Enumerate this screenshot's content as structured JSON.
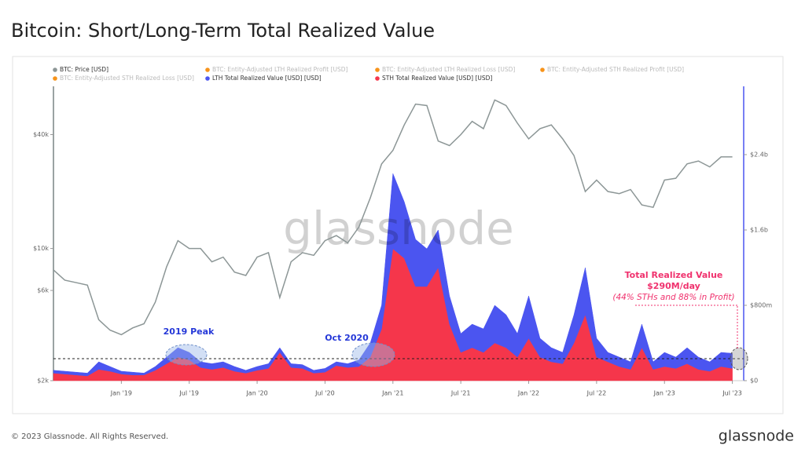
{
  "chart_data": {
    "type": "area",
    "title": "Bitcoin: Short/Long-Term Total Realized Value",
    "footer": "© 2023 Glassnode. All Rights Reserved.",
    "logo": "glassnode",
    "watermark": "glassnode",
    "x": [
      "2018-07",
      "2018-08",
      "2018-09",
      "2018-10",
      "2018-11",
      "2018-12",
      "2019-01",
      "2019-02",
      "2019-03",
      "2019-04",
      "2019-05",
      "2019-06",
      "2019-07",
      "2019-08",
      "2019-09",
      "2019-10",
      "2019-11",
      "2019-12",
      "2020-01",
      "2020-02",
      "2020-03",
      "2020-04",
      "2020-05",
      "2020-06",
      "2020-07",
      "2020-08",
      "2020-09",
      "2020-10",
      "2020-11",
      "2020-12",
      "2021-01",
      "2021-02",
      "2021-03",
      "2021-04",
      "2021-05",
      "2021-06",
      "2021-07",
      "2021-08",
      "2021-09",
      "2021-10",
      "2021-11",
      "2021-12",
      "2022-01",
      "2022-02",
      "2022-03",
      "2022-04",
      "2022-05",
      "2022-06",
      "2022-07",
      "2022-08",
      "2022-09",
      "2022-10",
      "2022-11",
      "2022-12",
      "2023-01",
      "2023-02",
      "2023-03",
      "2023-04",
      "2023-05",
      "2023-06",
      "2023-07"
    ],
    "xlim": [
      "2018-07",
      "2023-08"
    ],
    "xticks": [
      {
        "value": "2019-01",
        "label": "Jan '19"
      },
      {
        "value": "2019-07",
        "label": "Jul '19"
      },
      {
        "value": "2020-01",
        "label": "Jan '20"
      },
      {
        "value": "2020-07",
        "label": "Jul '20"
      },
      {
        "value": "2021-01",
        "label": "Jan '21"
      },
      {
        "value": "2021-07",
        "label": "Jul '21"
      },
      {
        "value": "2022-01",
        "label": "Jan '22"
      },
      {
        "value": "2022-07",
        "label": "Jul '22"
      },
      {
        "value": "2023-01",
        "label": "Jan '23"
      },
      {
        "value": "2023-07",
        "label": "Jul '23"
      }
    ],
    "ylim": [
      2000,
      72000
    ],
    "yscale": "log",
    "yticks": [
      {
        "value": 2000,
        "label": "$2k"
      },
      {
        "value": 6000,
        "label": "$6k"
      },
      {
        "value": 10000,
        "label": "$10k"
      },
      {
        "value": 40000,
        "label": "$40k"
      }
    ],
    "y2lim": [
      0,
      3125000000
    ],
    "y2ticks": [
      {
        "value": 0,
        "label": "$0"
      },
      {
        "value": 800000000,
        "label": "$800m"
      },
      {
        "value": 1600000000,
        "label": "$1.6b"
      },
      {
        "value": 2400000000,
        "label": "$2.4b"
      }
    ],
    "reference_line": 233000000,
    "series": [
      {
        "name": "BTC: Price [USD]",
        "color": "#8c9696",
        "kind": "line",
        "axis": "y",
        "values": [
          7700,
          6800,
          6600,
          6400,
          4200,
          3700,
          3500,
          3800,
          4000,
          5200,
          8000,
          11000,
          10000,
          10000,
          8500,
          9000,
          7500,
          7200,
          9000,
          9500,
          5500,
          8500,
          9500,
          9200,
          11000,
          11700,
          10700,
          13000,
          18500,
          28000,
          33000,
          45000,
          58000,
          57000,
          37000,
          35000,
          40000,
          47000,
          43000,
          61000,
          57000,
          46000,
          38000,
          43000,
          45000,
          38000,
          31000,
          20000,
          23000,
          20000,
          19500,
          20500,
          17000,
          16500,
          23000,
          23500,
          28000,
          29000,
          27000,
          30500,
          30500
        ]
      },
      {
        "name": "BTC: Entity-Adjusted LTH Realized Profit [USD]",
        "color": "#f7931a",
        "visible": false
      },
      {
        "name": "BTC: Entity-Adjusted LTH Realized Loss [USD]",
        "color": "#f7931a",
        "visible": false
      },
      {
        "name": "BTC: Entity-Adjusted STH Realized Profit [USD]",
        "color": "#f7931a",
        "visible": false
      },
      {
        "name": "BTC: Entity-Adjusted STH Realized Loss [USD]",
        "color": "#f7931a",
        "visible": false
      },
      {
        "name": "LTH Total Realized Value [USD] [USD]",
        "color": "#4b55f0",
        "kind": "area",
        "axis": "y2",
        "stack": 1,
        "values": [
          30000000,
          30000000,
          30000000,
          30000000,
          80000000,
          50000000,
          30000000,
          30000000,
          20000000,
          40000000,
          70000000,
          100000000,
          80000000,
          60000000,
          60000000,
          60000000,
          50000000,
          30000000,
          40000000,
          50000000,
          50000000,
          40000000,
          40000000,
          30000000,
          40000000,
          40000000,
          40000000,
          70000000,
          150000000,
          250000000,
          800000000,
          600000000,
          500000000,
          400000000,
          400000000,
          300000000,
          200000000,
          250000000,
          250000000,
          400000000,
          350000000,
          250000000,
          450000000,
          200000000,
          150000000,
          120000000,
          300000000,
          500000000,
          200000000,
          100000000,
          100000000,
          80000000,
          250000000,
          80000000,
          150000000,
          120000000,
          170000000,
          130000000,
          100000000,
          150000000,
          160000000
        ]
      },
      {
        "name": "STH Total Realized Value [USD] [USD]",
        "color": "#f5364b",
        "kind": "area",
        "axis": "y2",
        "stack": 0,
        "values": [
          80000000,
          70000000,
          60000000,
          50000000,
          120000000,
          100000000,
          70000000,
          60000000,
          60000000,
          110000000,
          180000000,
          250000000,
          220000000,
          140000000,
          120000000,
          140000000,
          100000000,
          80000000,
          110000000,
          130000000,
          300000000,
          140000000,
          130000000,
          80000000,
          90000000,
          160000000,
          140000000,
          150000000,
          250000000,
          550000000,
          1400000000,
          1300000000,
          1000000000,
          1000000000,
          1200000000,
          600000000,
          300000000,
          350000000,
          300000000,
          400000000,
          350000000,
          250000000,
          450000000,
          250000000,
          200000000,
          180000000,
          400000000,
          700000000,
          250000000,
          200000000,
          150000000,
          120000000,
          350000000,
          120000000,
          150000000,
          130000000,
          180000000,
          120000000,
          100000000,
          150000000,
          130000000
        ]
      }
    ],
    "annotations": {
      "peak_2019": "2019 Peak",
      "oct_2020": "Oct 2020",
      "callout_title": "Total Realized Value",
      "callout_value": "$290M/day",
      "callout_note": "(44% STHs and 88% in Profit)"
    }
  }
}
